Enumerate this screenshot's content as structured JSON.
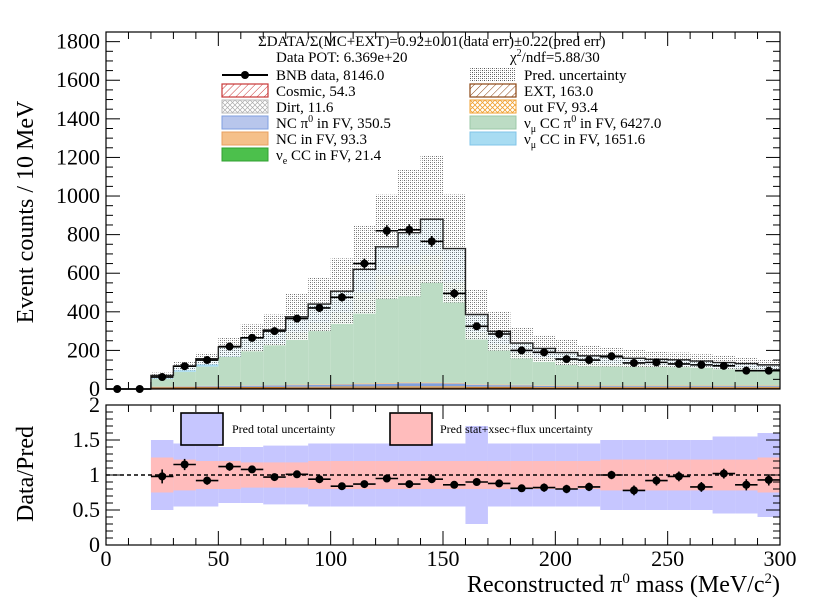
{
  "chart_data": [
    {
      "type": "stacked-histogram",
      "header": {
        "ratio_text": "ΣDATA/Σ(MC+EXT)=0.92±0.01(data err)±0.22(pred err)",
        "pot_text": "Data POT: 6.369e+20",
        "chi2_prefix": "χ",
        "chi2_sup": "2",
        "chi2_suffix": "/ndf=5.88/30"
      },
      "ylabel": "Event counts / 10 MeV",
      "xlim": [
        0,
        300
      ],
      "ylim": [
        0,
        1850
      ],
      "y_ticks": [
        0,
        200,
        400,
        600,
        800,
        1000,
        1200,
        1400,
        1600,
        1800
      ],
      "bin_edges": [
        0,
        10,
        20,
        30,
        40,
        50,
        60,
        70,
        80,
        90,
        100,
        110,
        120,
        130,
        140,
        150,
        160,
        170,
        180,
        190,
        200,
        210,
        220,
        230,
        240,
        250,
        260,
        270,
        280,
        290,
        300
      ],
      "legend": [
        {
          "key": "data",
          "label": "BNB data, 8146.0"
        },
        {
          "key": "unc",
          "label": "Pred. uncertainty"
        },
        {
          "key": "cosmic",
          "label": "Cosmic, 54.3"
        },
        {
          "key": "ext",
          "label": "EXT, 163.0"
        },
        {
          "key": "dirt",
          "label": "Dirt, 11.6"
        },
        {
          "key": "outfv",
          "label": "out FV, 93.4"
        },
        {
          "key": "ncpi0",
          "label": "NC π",
          "sup": "0",
          "suffix": " in FV,  350.5"
        },
        {
          "key": "numupi0",
          "label": "ν",
          "sub": "μ",
          "mid": " CC π",
          "sup": "0",
          "suffix": " in FV, 6427.0"
        },
        {
          "key": "nc",
          "label": "NC in FV, 93.3"
        },
        {
          "key": "numucc",
          "label": "ν",
          "sub": "μ",
          "suffix": " CC in FV, 1651.6"
        },
        {
          "key": "nuecc",
          "label": "ν",
          "sub": "e",
          "suffix": " CC in FV, 21.4"
        }
      ],
      "series": [
        {
          "name": "Cosmic",
          "color": "#c83737",
          "values": [
            0,
            0,
            2,
            2,
            2,
            2,
            2,
            2,
            2,
            2,
            2,
            2,
            2,
            2,
            2,
            2,
            2,
            2,
            2,
            2,
            2,
            2,
            2,
            2,
            2,
            2,
            2,
            2,
            2,
            2
          ]
        },
        {
          "name": "EXT",
          "color": "#8b4513",
          "values": [
            0,
            0,
            6,
            6,
            6,
            6,
            6,
            6,
            6,
            6,
            6,
            6,
            6,
            6,
            6,
            6,
            6,
            6,
            6,
            5,
            5,
            5,
            5,
            5,
            5,
            5,
            5,
            5,
            5,
            5
          ]
        },
        {
          "name": "Dirt",
          "color": "#aaaaaa",
          "values": [
            0,
            0,
            0,
            0,
            0,
            0,
            0,
            0,
            1,
            1,
            1,
            1,
            1,
            1,
            1,
            1,
            0,
            0,
            0,
            0,
            0,
            0,
            0,
            0,
            0,
            0,
            0,
            0,
            0,
            0
          ]
        },
        {
          "name": "out FV",
          "color": "#f0a030",
          "values": [
            0,
            0,
            1,
            2,
            2,
            2,
            3,
            3,
            3,
            3,
            4,
            4,
            4,
            5,
            5,
            5,
            4,
            4,
            4,
            3,
            3,
            3,
            3,
            3,
            3,
            3,
            3,
            3,
            3,
            3
          ]
        },
        {
          "name": "NC pi0 in FV",
          "color": "#7f9fdf",
          "values": [
            0,
            0,
            2,
            3,
            4,
            5,
            6,
            7,
            8,
            9,
            10,
            12,
            14,
            16,
            16,
            14,
            10,
            8,
            7,
            6,
            5,
            5,
            5,
            5,
            5,
            5,
            5,
            5,
            5,
            5
          ]
        },
        {
          "name": "NC in FV",
          "color": "#f5c08a",
          "values": [
            0,
            0,
            1,
            1,
            2,
            2,
            2,
            2,
            3,
            3,
            3,
            4,
            4,
            4,
            4,
            4,
            3,
            3,
            3,
            3,
            3,
            3,
            3,
            3,
            3,
            3,
            3,
            3,
            3,
            3
          ]
        },
        {
          "name": "numu CC pi0 in FV",
          "color": "#bcdcc4",
          "values": [
            0,
            0,
            40,
            75,
            100,
            150,
            185,
            215,
            270,
            320,
            370,
            470,
            560,
            610,
            660,
            520,
            270,
            210,
            165,
            145,
            130,
            118,
            112,
            110,
            105,
            102,
            98,
            92,
            88,
            82
          ]
        },
        {
          "name": "numu CC in FV",
          "color": "#a8dcf2",
          "values": [
            0,
            0,
            18,
            30,
            40,
            50,
            60,
            70,
            80,
            95,
            110,
            120,
            145,
            165,
            185,
            175,
            90,
            65,
            50,
            45,
            40,
            35,
            35,
            30,
            30,
            30,
            28,
            26,
            25,
            24
          ]
        },
        {
          "name": "nue CC in FV",
          "color": "#4cc04c",
          "values": [
            0,
            0,
            0,
            0,
            1,
            1,
            1,
            1,
            1,
            1,
            1,
            1,
            1,
            1,
            1,
            1,
            1,
            1,
            1,
            1,
            1,
            1,
            1,
            1,
            1,
            1,
            1,
            1,
            1,
            1
          ]
        }
      ],
      "pred_uncertainty": [
        0,
        0,
        15,
        22,
        30,
        50,
        70,
        80,
        120,
        140,
        170,
        230,
        270,
        330,
        330,
        280,
        130,
        100,
        80,
        70,
        65,
        55,
        50,
        45,
        40,
        38,
        35,
        35,
        32,
        30
      ],
      "data": {
        "x": [
          5,
          15,
          25,
          35,
          45,
          55,
          65,
          75,
          85,
          95,
          105,
          115,
          125,
          135,
          145,
          155,
          165,
          175,
          185,
          195,
          205,
          215,
          225,
          235,
          245,
          255,
          265,
          275,
          285,
          295
        ],
        "y": [
          0,
          0,
          62,
          118,
          150,
          220,
          265,
          300,
          365,
          420,
          475,
          650,
          820,
          825,
          765,
          495,
          325,
          285,
          200,
          190,
          155,
          150,
          170,
          135,
          138,
          130,
          125,
          120,
          95,
          95
        ],
        "err": [
          4,
          4,
          8,
          11,
          13,
          15,
          16,
          18,
          19,
          21,
          22,
          26,
          29,
          29,
          28,
          23,
          18,
          17,
          14,
          14,
          13,
          12,
          13,
          12,
          12,
          12,
          11,
          11,
          10,
          10
        ]
      }
    },
    {
      "type": "ratio",
      "ylabel": "Data/Pred",
      "xlabel_prefix": "Reconstructed π",
      "xlabel_sup": "0",
      "xlabel_mid": " mass (MeV/c",
      "xlabel_sup2": "2",
      "xlabel_suffix": ")",
      "xlim": [
        0,
        300
      ],
      "ylim": [
        0,
        2
      ],
      "y_ticks": [
        0,
        0.5,
        1,
        1.5,
        2
      ],
      "y_tick_labels": [
        "0",
        "0.5",
        "1",
        "1.5",
        "2"
      ],
      "x_ticks": [
        0,
        50,
        100,
        150,
        200,
        250,
        300
      ],
      "legend": [
        {
          "key": "total",
          "label": "Pred total uncertainty",
          "color": "#c6c6ff"
        },
        {
          "key": "stat",
          "label": "Pred stat+xsec+flux uncertainty",
          "color": "#ffbcbc"
        }
      ],
      "total_unc": [
        0,
        0,
        0.5,
        0.45,
        0.45,
        0.4,
        0.4,
        0.42,
        0.42,
        0.45,
        0.45,
        0.45,
        0.45,
        0.45,
        0.45,
        0.45,
        0.7,
        0.45,
        0.45,
        0.45,
        0.45,
        0.45,
        0.5,
        0.5,
        0.5,
        0.5,
        0.5,
        0.55,
        0.55,
        0.6
      ],
      "stat_unc": [
        0,
        0,
        0.25,
        0.22,
        0.2,
        0.2,
        0.18,
        0.18,
        0.18,
        0.2,
        0.2,
        0.2,
        0.2,
        0.2,
        0.2,
        0.2,
        0.2,
        0.2,
        0.2,
        0.2,
        0.2,
        0.2,
        0.22,
        0.22,
        0.22,
        0.22,
        0.22,
        0.22,
        0.22,
        0.25
      ],
      "ratio": {
        "x": [
          25,
          35,
          45,
          55,
          65,
          75,
          85,
          95,
          105,
          115,
          125,
          135,
          145,
          155,
          165,
          175,
          185,
          195,
          205,
          215,
          225,
          235,
          245,
          255,
          265,
          275,
          285,
          295
        ],
        "y": [
          0.98,
          1.15,
          0.92,
          1.12,
          1.08,
          0.97,
          1.01,
          0.94,
          0.84,
          0.87,
          0.95,
          0.87,
          0.94,
          0.86,
          0.9,
          0.88,
          0.81,
          0.82,
          0.8,
          0.83,
          1.0,
          0.78,
          0.92,
          0.98,
          0.83,
          1.02,
          0.86,
          0.93
        ],
        "err": [
          0.1,
          0.08,
          0.06,
          0.06,
          0.05,
          0.05,
          0.04,
          0.04,
          0.04,
          0.03,
          0.03,
          0.03,
          0.03,
          0.04,
          0.05,
          0.05,
          0.05,
          0.06,
          0.06,
          0.06,
          0.06,
          0.07,
          0.07,
          0.07,
          0.07,
          0.07,
          0.08,
          0.08
        ]
      }
    }
  ]
}
